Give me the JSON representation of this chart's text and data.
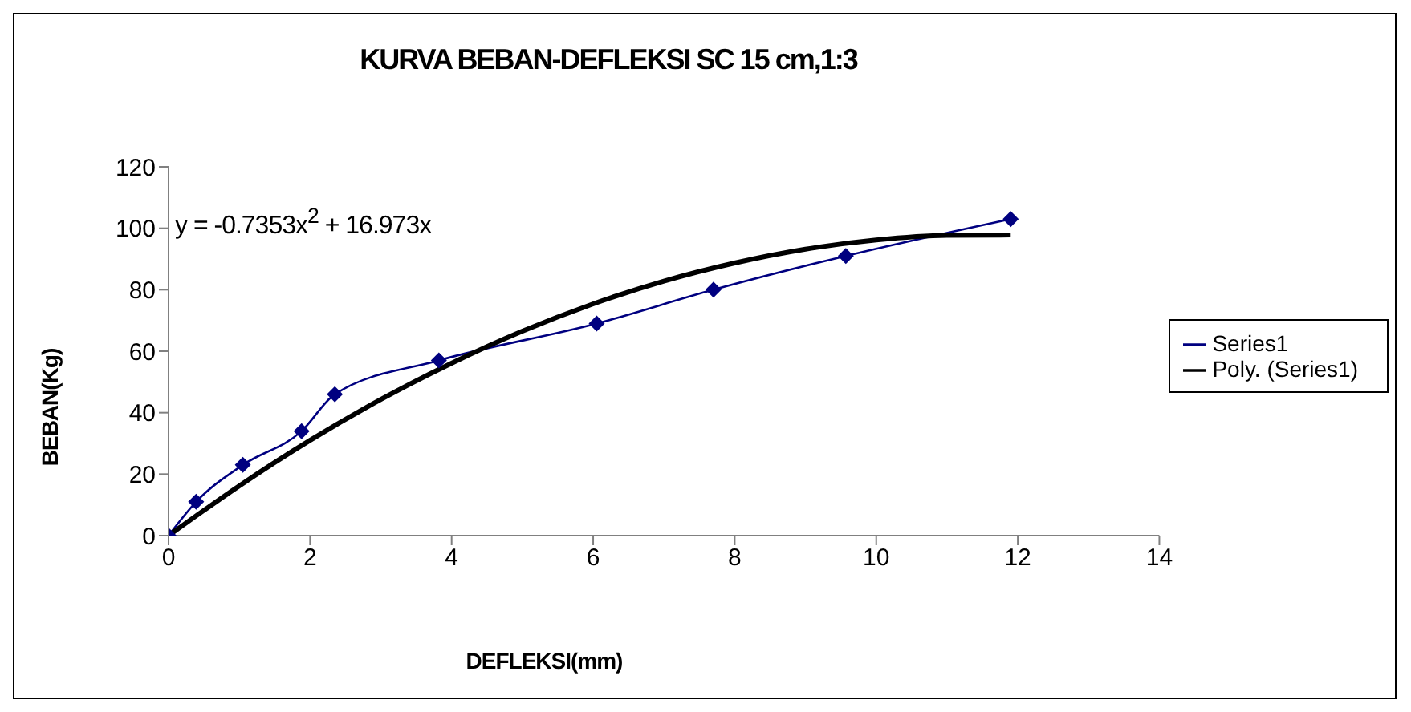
{
  "chart_data": {
    "type": "line",
    "title": "KURVA BEBAN-DEFLEKSI SC 15 cm,1:3",
    "xlabel": "DEFLEKSI(mm)",
    "ylabel": "BEBAN(Kg)",
    "annotations": [
      "y = -0.7353x$^{2}$ + 16.973x"
    ],
    "series": [
      {
        "name": "Series1",
        "color": "#000080",
        "marker": "diamond",
        "x": [
          0,
          0.39,
          1.05,
          1.88,
          2.35,
          3.82,
          6.05,
          7.7,
          9.57,
          11.9
        ],
        "values": [
          0,
          11,
          23,
          34,
          46,
          57,
          69,
          80,
          91,
          103
        ]
      },
      {
        "name": "Poly. (Series1)",
        "color": "#000000",
        "marker": "none",
        "x": [
          0,
          1,
          2,
          3,
          4,
          5,
          6,
          7,
          8,
          9,
          10,
          11,
          11.9
        ],
        "values": [
          0,
          16.2,
          31,
          44.3,
          56.1,
          66.5,
          75.4,
          82.8,
          88.7,
          93.2,
          96.2,
          97.7,
          97.8
        ]
      }
    ],
    "xlim": [
      0,
      14
    ],
    "xticks": [
      0,
      2,
      4,
      6,
      8,
      10,
      12,
      14
    ],
    "ylim": [
      0,
      120
    ],
    "yticks": [
      0,
      20,
      40,
      60,
      80,
      100,
      120
    ],
    "grid": false,
    "legend": "right"
  }
}
